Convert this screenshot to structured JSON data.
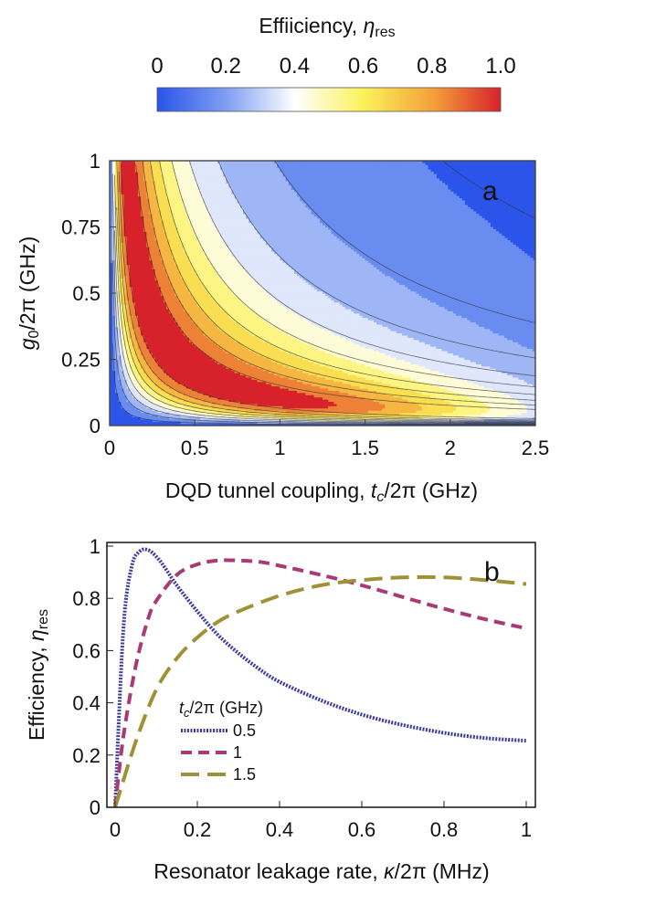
{
  "colorbar": {
    "title": "Effiiciency, ",
    "title_symbol": "η",
    "title_sub": "res",
    "ticks": [
      "0",
      "0.2",
      "0.4",
      "0.6",
      "0.8",
      "1.0"
    ],
    "range": [
      0,
      1
    ],
    "colors": [
      "#2b54ea",
      "#7e9ef2",
      "#ffffff",
      "#fbf25a",
      "#f4a23a",
      "#d8222b"
    ]
  },
  "chart_data": [
    {
      "type": "heatmap",
      "panel": "a",
      "xlabel_prefix": "DQD tunnel coupling, ",
      "xlabel_var": "t",
      "xlabel_var_sub": "c",
      "xlabel_suffix": "/2π (GHz)",
      "ylabel_var": "g",
      "ylabel_var_sub": "0",
      "ylabel_suffix": "/2π (GHz)",
      "xlim": [
        0,
        2.5
      ],
      "ylim": [
        0,
        1
      ],
      "xticks": [
        "0",
        "0.5",
        "1",
        "1.5",
        "2",
        "2.5"
      ],
      "xtick_values": [
        0,
        0.5,
        1,
        1.5,
        2,
        2.5
      ],
      "yticks": [
        "0",
        "0.25",
        "0.5",
        "0.75",
        "1"
      ],
      "ytick_values": [
        0,
        0.25,
        0.5,
        0.75,
        1
      ],
      "contour_levels": [
        0.1,
        0.2,
        0.3,
        0.4,
        0.5,
        0.6,
        0.7,
        0.8,
        0.9
      ],
      "peak_efficiency": 0.98
    },
    {
      "type": "line",
      "panel": "b",
      "xlabel_prefix": "Resonator leakage rate, ",
      "xlabel_var": "κ",
      "xlabel_suffix": "/2π (MHz)",
      "ylabel_prefix": "Efficiency, ",
      "ylabel_var": "η",
      "ylabel_sub": "res",
      "xlim": [
        0,
        1
      ],
      "ylim": [
        0,
        1
      ],
      "xticks": [
        "0",
        "0.2",
        "0.4",
        "0.6",
        "0.8",
        "1"
      ],
      "xtick_values": [
        0,
        0.2,
        0.4,
        0.6,
        0.8,
        1
      ],
      "yticks": [
        "0",
        "0.2",
        "0.4",
        "0.6",
        "0.8",
        "1"
      ],
      "ytick_values": [
        0,
        0.2,
        0.4,
        0.6,
        0.8,
        1
      ],
      "legend_title_var": "t",
      "legend_title_sub": "c",
      "legend_title_suffix": "/2π (GHz)",
      "legend_position": "bottom-left",
      "series": [
        {
          "name": "0.5",
          "color": "#3d3d9e",
          "dash": "dotted",
          "x": [
            0,
            0.02,
            0.04,
            0.06,
            0.08,
            0.1,
            0.12,
            0.15,
            0.2,
            0.25,
            0.3,
            0.35,
            0.4,
            0.5,
            0.6,
            0.7,
            0.8,
            0.9,
            1.0
          ],
          "y": [
            0,
            0.68,
            0.92,
            0.98,
            0.985,
            0.96,
            0.92,
            0.85,
            0.75,
            0.66,
            0.59,
            0.53,
            0.48,
            0.41,
            0.355,
            0.315,
            0.285,
            0.265,
            0.255
          ]
        },
        {
          "name": "1",
          "color": "#a83a76",
          "dash": "dashed",
          "x": [
            0,
            0.02,
            0.05,
            0.08,
            0.1,
            0.15,
            0.2,
            0.25,
            0.3,
            0.35,
            0.4,
            0.5,
            0.6,
            0.7,
            0.8,
            0.9,
            1.0
          ],
          "y": [
            0,
            0.27,
            0.54,
            0.72,
            0.79,
            0.89,
            0.93,
            0.945,
            0.945,
            0.94,
            0.925,
            0.89,
            0.85,
            0.805,
            0.76,
            0.72,
            0.685
          ]
        },
        {
          "name": "1.5",
          "color": "#9e9238",
          "dash": "longdashed",
          "x": [
            0,
            0.05,
            0.1,
            0.15,
            0.2,
            0.25,
            0.3,
            0.4,
            0.5,
            0.6,
            0.7,
            0.8,
            0.9,
            1.0
          ],
          "y": [
            0,
            0.25,
            0.45,
            0.57,
            0.65,
            0.71,
            0.75,
            0.81,
            0.85,
            0.87,
            0.88,
            0.88,
            0.87,
            0.855
          ]
        }
      ]
    }
  ]
}
